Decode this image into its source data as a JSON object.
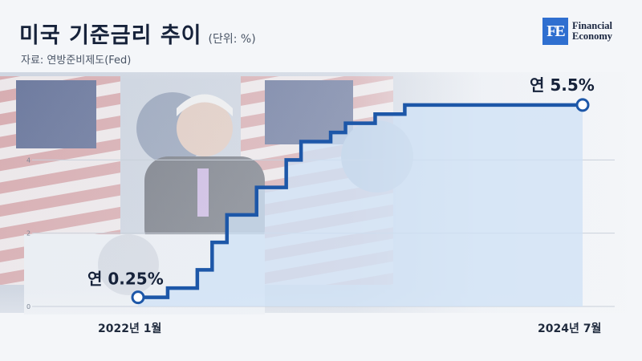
{
  "header": {
    "title": "미국 기준금리 추이",
    "unit": "(단위: %)",
    "source": "자료: 연방준비제도(Fed)"
  },
  "logo": {
    "mark": "FE",
    "line1": "Financial",
    "line2": "Economy"
  },
  "chart_data": {
    "type": "line",
    "step": true,
    "x": [
      "2022-01",
      "2022-03",
      "2022-05",
      "2022-06",
      "2022-07",
      "2022-09",
      "2022-11",
      "2022-12",
      "2023-02",
      "2023-03",
      "2023-05",
      "2023-07",
      "2024-07"
    ],
    "x_tick_labels": [
      "2022년 1월",
      "2024년 7월"
    ],
    "y": [
      0.25,
      0.5,
      1.0,
      1.75,
      2.5,
      3.25,
      4.0,
      4.5,
      4.75,
      5.0,
      5.25,
      5.5,
      5.5
    ],
    "y_ticks": [
      0,
      2,
      4
    ],
    "ylim": [
      0,
      6.0
    ],
    "annotations": [
      {
        "label": "연 0.25%",
        "index": 0
      },
      {
        "label": "연 5.5%",
        "index": 12
      }
    ],
    "grid": true,
    "colors": {
      "line": "#1d57a8",
      "fill": "#cfe1f5"
    }
  }
}
